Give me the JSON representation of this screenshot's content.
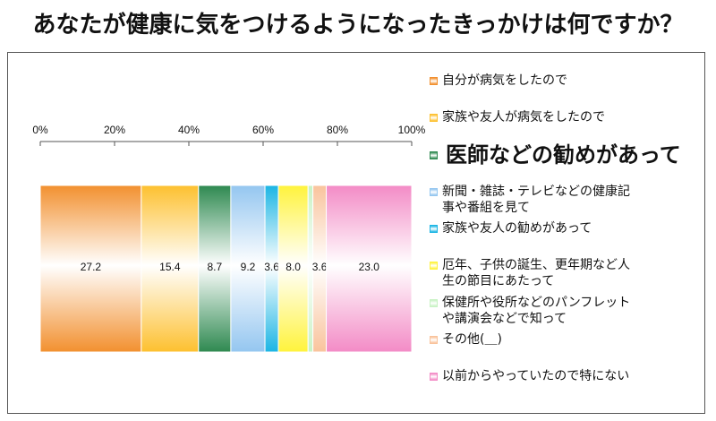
{
  "chart_data": {
    "type": "bar",
    "orientation": "horizontal",
    "stacked": true,
    "percent": true,
    "title": "あなたが健康に気をつけるようになったきっかけは何ですか？",
    "xlim": [
      0,
      100
    ],
    "x_ticks": [
      0,
      20,
      40,
      60,
      80,
      100
    ],
    "x_tick_labels": [
      "0%",
      "20%",
      "40%",
      "60%",
      "80%",
      "100%"
    ],
    "grid": false,
    "legend_position": "right",
    "series": [
      {
        "name": "自分が病気をしたので",
        "value": 27.2,
        "label": "27.2",
        "color": "#f2902f"
      },
      {
        "name": "家族や友人が病気をしたので",
        "value": 15.4,
        "label": "15.4",
        "color": "#fdc02f"
      },
      {
        "name": "医師などの勧めがあって",
        "value": 8.7,
        "label": "8.7",
        "color": "#2e8950",
        "highlight": true
      },
      {
        "name": "新聞・雑誌・テレビなどの健康記事や番組を見て",
        "value": 9.2,
        "label": "9.2",
        "color": "#94c6f0"
      },
      {
        "name": "家族や友人の勧めがあって",
        "value": 3.6,
        "label": "3.6",
        "color": "#1bb5e4"
      },
      {
        "name": "厄年、子供の誕生、更年期など人生の節目にあたって",
        "value": 8.0,
        "label": "8.0",
        "color": "#fff33c"
      },
      {
        "name": "保健所や役所などのパンフレットや講演会などで知って",
        "value": 1.3,
        "color": "#c8f2c4"
      },
      {
        "name": "その他(＿)",
        "value": 3.6,
        "label": "3.6",
        "color": "#f9c39c"
      },
      {
        "name": "以前からやっていたので特にない",
        "value": 23.0,
        "label": "23.0",
        "color": "#f38bc6"
      }
    ]
  }
}
